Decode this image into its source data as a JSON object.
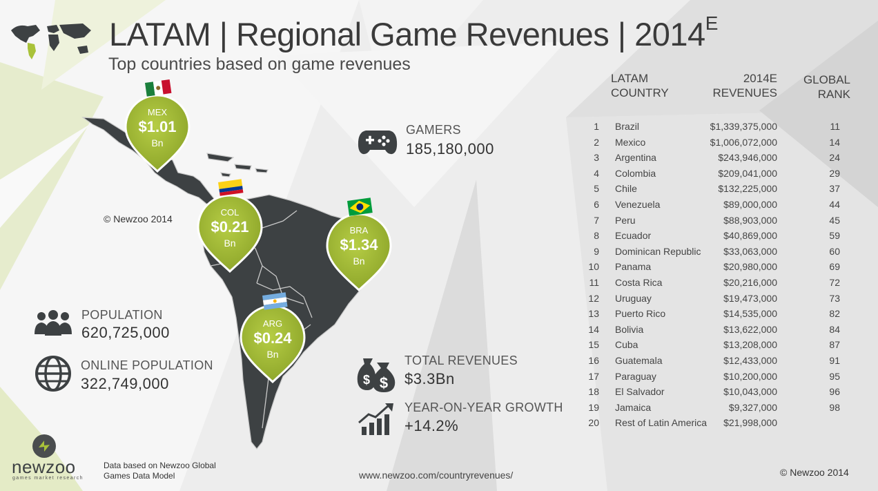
{
  "title": {
    "main": "LATAM | Regional Game Revenues | 2014",
    "superscript": "E",
    "subtitle": "Top countries based on game revenues"
  },
  "copyright_top": "© Newzoo 2014",
  "pins": [
    {
      "code": "MEX",
      "value": "$1.01",
      "unit": "Bn",
      "flag": "mexico-flag"
    },
    {
      "code": "COL",
      "value": "$0.21",
      "unit": "Bn",
      "flag": "colombia-flag"
    },
    {
      "code": "BRA",
      "value": "$1.34",
      "unit": "Bn",
      "flag": "brazil-flag"
    },
    {
      "code": "ARG",
      "value": "$0.24",
      "unit": "Bn",
      "flag": "argentina-flag"
    }
  ],
  "stats": {
    "gamers": {
      "label": "GAMERS",
      "value": "185,180,000",
      "icon": "gamepad-icon"
    },
    "population": {
      "label": "POPULATION",
      "value": "620,725,000",
      "icon": "people-icon"
    },
    "online_population": {
      "label": "ONLINE POPULATION",
      "value": "322,749,000",
      "icon": "globe-icon"
    },
    "total_revenues": {
      "label": "TOTAL REVENUES",
      "value": "$3.3Bn",
      "icon": "money-bags-icon"
    },
    "growth": {
      "label": "YEAR-ON-YEAR GROWTH",
      "value": "+14.2%",
      "icon": "growth-chart-icon"
    }
  },
  "table": {
    "headers": {
      "country_line1": "LATAM",
      "country_line2": "COUNTRY",
      "revenues_line1": "2014E",
      "revenues_line2": "REVENUES",
      "rank_line1": "GLOBAL",
      "rank_line2": "RANK"
    },
    "rows": [
      {
        "num": "1",
        "country": "Brazil",
        "revenue": "$1,339,375,000",
        "rank": "11"
      },
      {
        "num": "2",
        "country": "Mexico",
        "revenue": "$1,006,072,000",
        "rank": "14"
      },
      {
        "num": "3",
        "country": "Argentina",
        "revenue": "$243,946,000",
        "rank": "24"
      },
      {
        "num": "4",
        "country": "Colombia",
        "revenue": "$209,041,000",
        "rank": "29"
      },
      {
        "num": "5",
        "country": "Chile",
        "revenue": "$132,225,000",
        "rank": "37"
      },
      {
        "num": "6",
        "country": "Venezuela",
        "revenue": "$89,000,000",
        "rank": "44"
      },
      {
        "num": "7",
        "country": "Peru",
        "revenue": "$88,903,000",
        "rank": "45"
      },
      {
        "num": "8",
        "country": "Ecuador",
        "revenue": "$40,869,000",
        "rank": "59"
      },
      {
        "num": "9",
        "country": "Dominican Republic",
        "revenue": "$33,063,000",
        "rank": "60"
      },
      {
        "num": "10",
        "country": "Panama",
        "revenue": "$20,980,000",
        "rank": "69"
      },
      {
        "num": "11",
        "country": "Costa Rica",
        "revenue": "$20,216,000",
        "rank": "72"
      },
      {
        "num": "12",
        "country": "Uruguay",
        "revenue": "$19,473,000",
        "rank": "73"
      },
      {
        "num": "13",
        "country": "Puerto Rico",
        "revenue": "$14,535,000",
        "rank": "82"
      },
      {
        "num": "14",
        "country": "Bolivia",
        "revenue": "$13,622,000",
        "rank": "84"
      },
      {
        "num": "15",
        "country": "Cuba",
        "revenue": "$13,208,000",
        "rank": "87"
      },
      {
        "num": "16",
        "country": "Guatemala",
        "revenue": "$12,433,000",
        "rank": "91"
      },
      {
        "num": "17",
        "country": "Paraguay",
        "revenue": "$10,200,000",
        "rank": "95"
      },
      {
        "num": "18",
        "country": "El Salvador",
        "revenue": "$10,043,000",
        "rank": "96"
      },
      {
        "num": "19",
        "country": "Jamaica",
        "revenue": "$9,327,000",
        "rank": "98"
      },
      {
        "num": "20",
        "country": "Rest of Latin America",
        "revenue": "$21,998,000",
        "rank": ""
      }
    ]
  },
  "footer": {
    "brand": "newzoo",
    "tagline": "games market research",
    "data_note_line1": "Data based on Newzoo Global",
    "data_note_line2": "Games Data Model",
    "url": "www.newzoo.com/countryrevenues/",
    "copyright": "© Newzoo 2014"
  },
  "colors": {
    "accent_green": "#a9c23a",
    "map_dark": "#3d4143",
    "text_dark": "#3a3a3a"
  }
}
